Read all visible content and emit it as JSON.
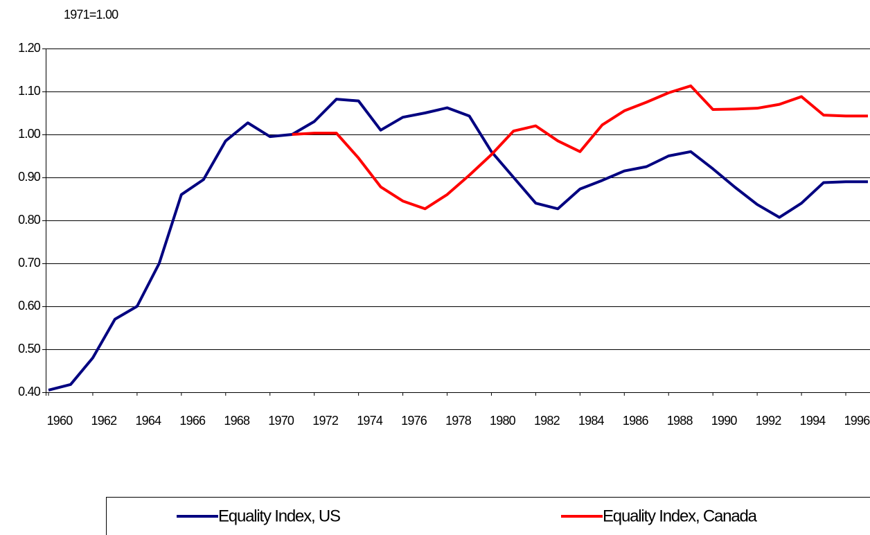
{
  "chart_data": {
    "type": "line",
    "subtitle": "1971=1.00",
    "x": [
      1960,
      1961,
      1962,
      1963,
      1964,
      1965,
      1966,
      1967,
      1968,
      1969,
      1970,
      1971,
      1972,
      1973,
      1974,
      1975,
      1976,
      1977,
      1978,
      1979,
      1980,
      1981,
      1982,
      1983,
      1984,
      1985,
      1986,
      1987,
      1988,
      1989,
      1990,
      1991,
      1992,
      1993,
      1994,
      1995,
      1996,
      1997
    ],
    "xlim": [
      1960,
      1997
    ],
    "xticks": [
      1960,
      1962,
      1964,
      1966,
      1968,
      1970,
      1972,
      1974,
      1976,
      1978,
      1980,
      1982,
      1984,
      1986,
      1988,
      1990,
      1992,
      1994,
      1996
    ],
    "ylim": [
      0.4,
      1.2
    ],
    "yticks": [
      {
        "value": 0.4,
        "label": "0.40"
      },
      {
        "value": 0.5,
        "label": "0.50"
      },
      {
        "value": 0.6,
        "label": "0.60"
      },
      {
        "value": 0.7,
        "label": "0.70"
      },
      {
        "value": 0.8,
        "label": "0.80"
      },
      {
        "value": 0.9,
        "label": "0.90"
      },
      {
        "value": 1.0,
        "label": "1.00"
      },
      {
        "value": 1.1,
        "label": "1.10"
      },
      {
        "value": 1.2,
        "label": "1.20"
      }
    ],
    "grid": true,
    "series": [
      {
        "name": "Equality Index, US",
        "color": "#000080",
        "values": [
          0.405,
          0.418,
          0.48,
          0.57,
          0.6,
          0.7,
          0.86,
          0.895,
          0.985,
          1.027,
          0.995,
          1.0,
          1.03,
          1.082,
          1.078,
          1.01,
          1.04,
          1.05,
          1.062,
          1.043,
          0.96,
          0.9,
          0.84,
          0.827,
          0.873,
          0.893,
          0.915,
          0.925,
          0.95,
          0.96,
          0.92,
          0.877,
          0.837,
          0.807,
          0.84,
          0.888,
          0.89,
          0.89
        ]
      },
      {
        "name": "Equality Index, Canada",
        "color": "#ff0000",
        "values": [
          null,
          null,
          null,
          null,
          null,
          null,
          null,
          null,
          null,
          null,
          null,
          1.0,
          1.003,
          1.003,
          0.945,
          0.878,
          0.845,
          0.827,
          0.86,
          0.905,
          0.953,
          1.008,
          1.02,
          0.985,
          0.96,
          1.022,
          1.055,
          1.075,
          1.097,
          1.113,
          1.058,
          1.059,
          1.061,
          1.07,
          1.088,
          1.045,
          1.043,
          1.043
        ]
      }
    ]
  }
}
